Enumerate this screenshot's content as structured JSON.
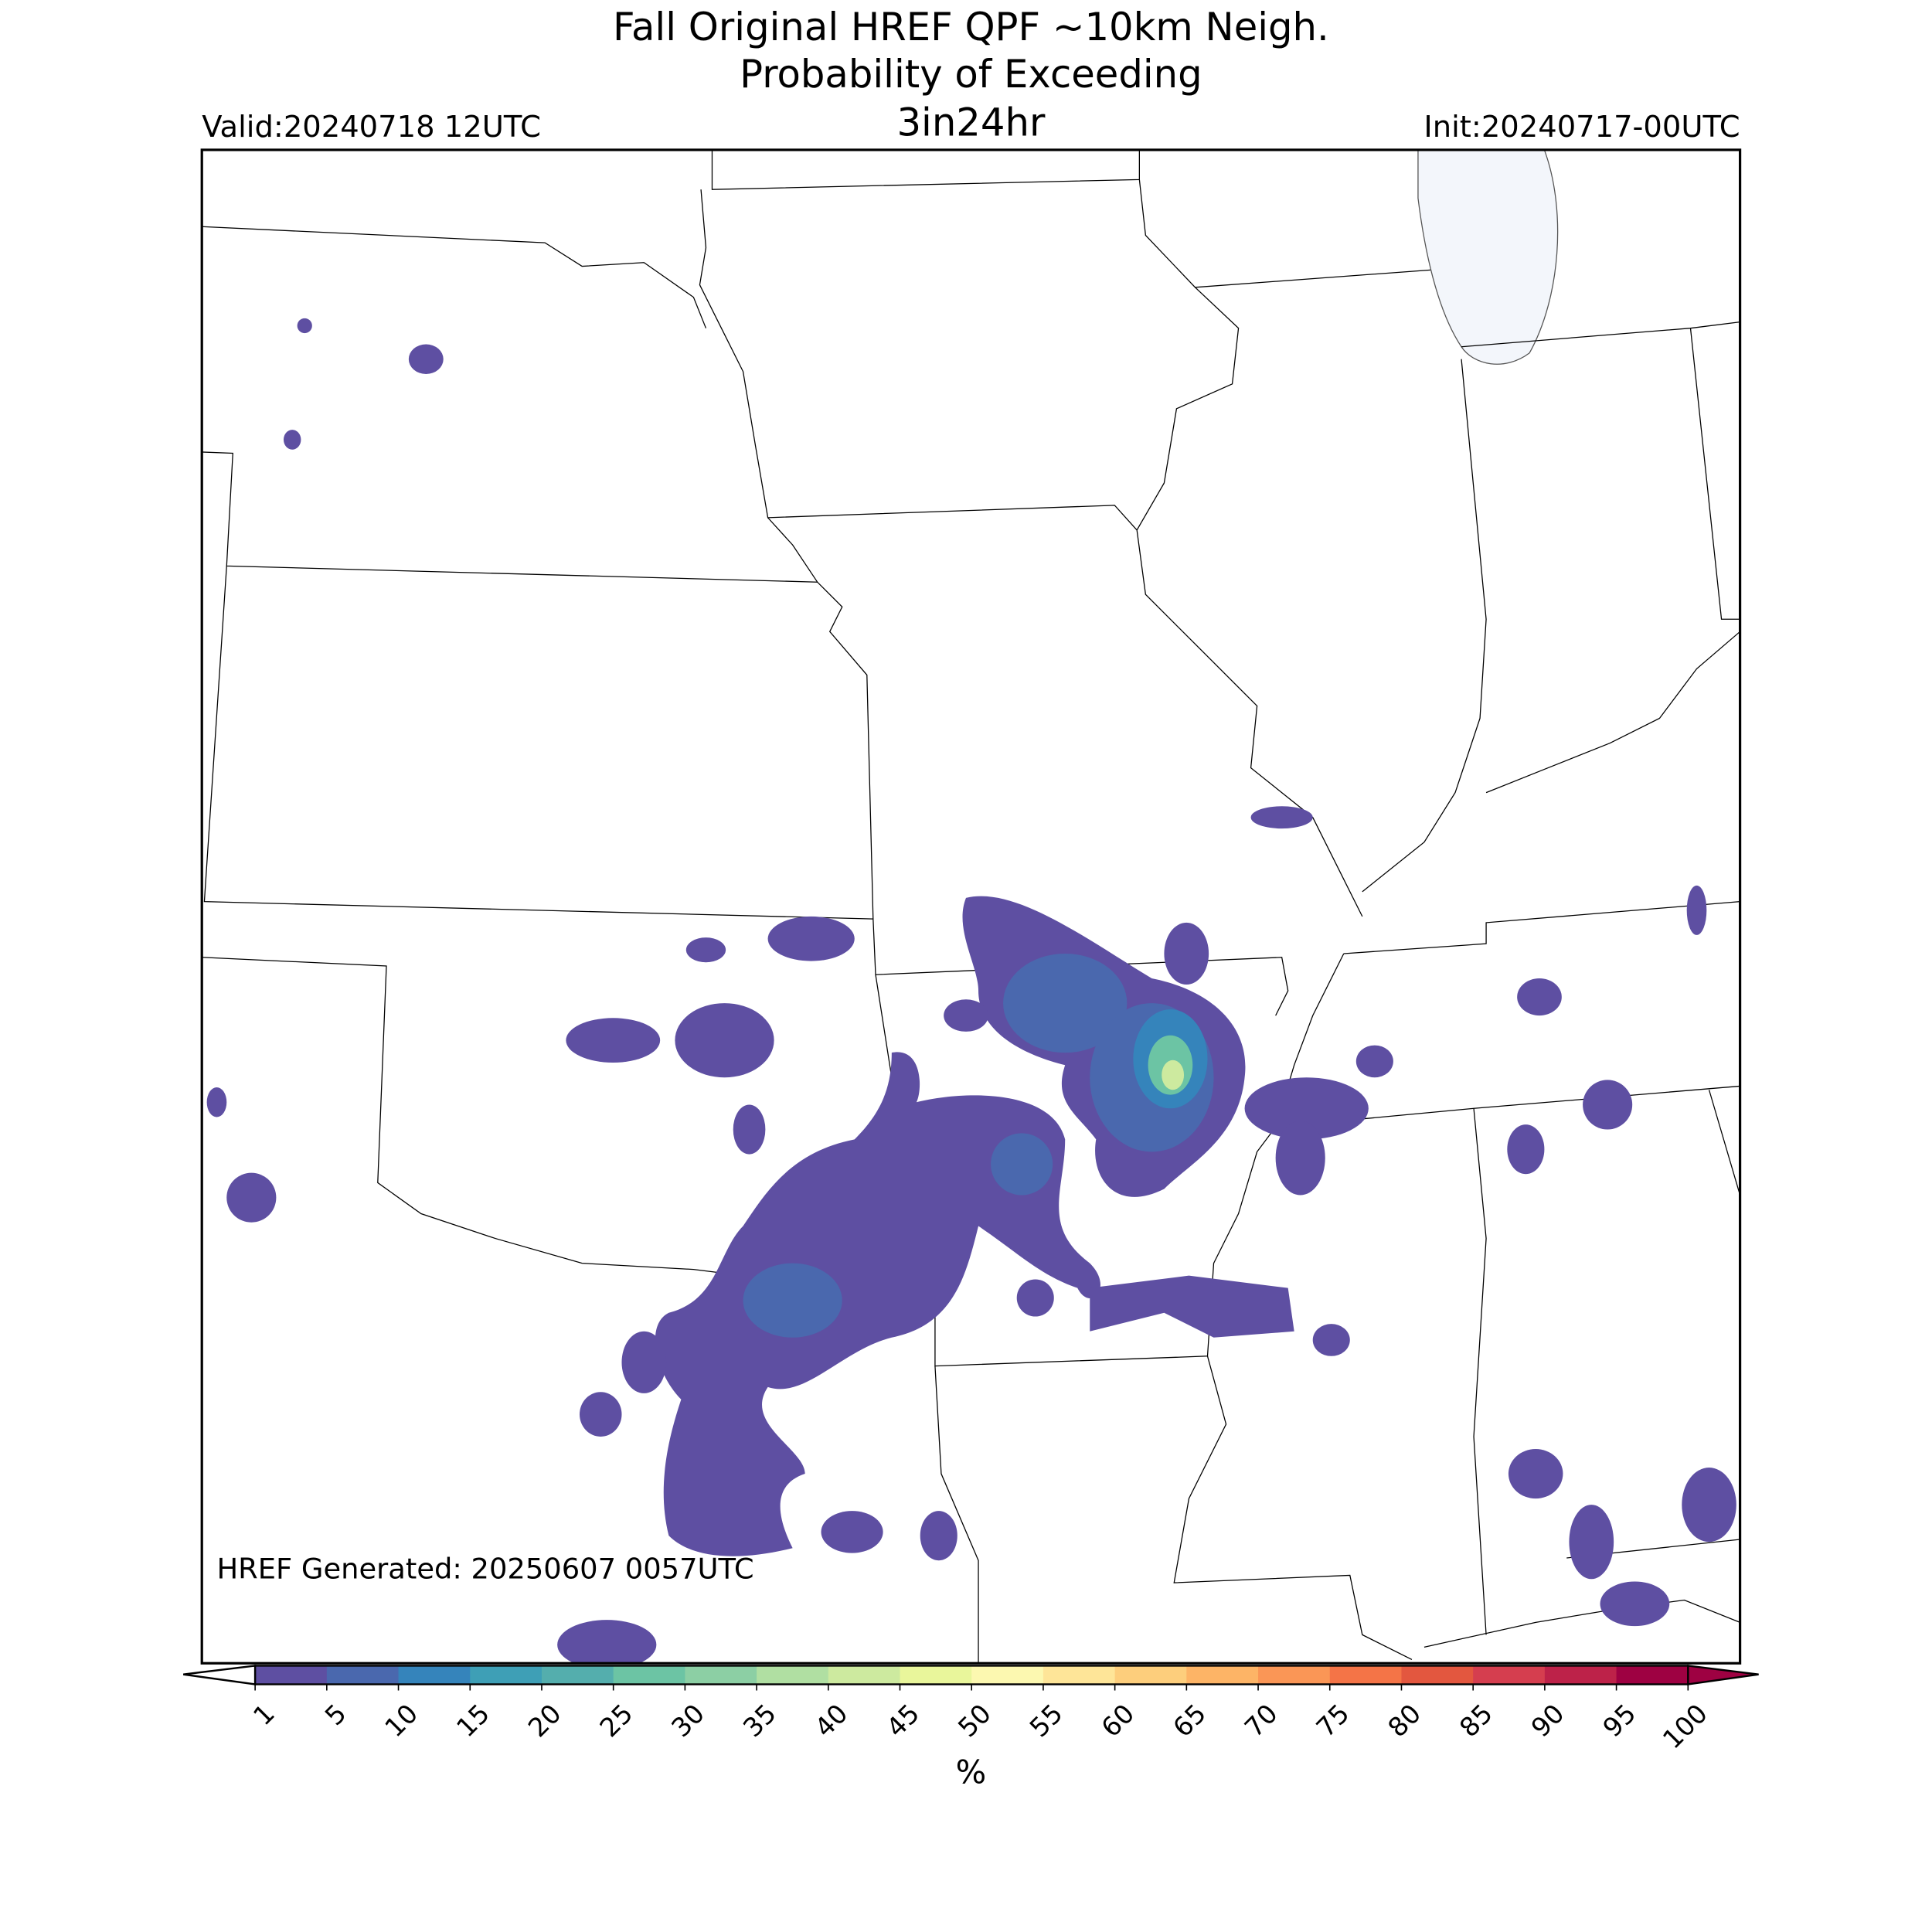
{
  "header": {
    "title_lines": [
      "Fall Original HREF QPF ~10km Neigh.",
      "Probability of Exceeding",
      "3in24hr"
    ],
    "valid": "Valid:20240718 12UTC",
    "init": "Init:20240717-00UTC"
  },
  "map": {
    "generated": "HREF Generated: 20250607 0057UTC"
  },
  "colorbar": {
    "label": "%",
    "ticks": [
      1,
      5,
      10,
      15,
      20,
      25,
      30,
      35,
      40,
      45,
      50,
      55,
      60,
      65,
      70,
      75,
      80,
      85,
      90,
      95,
      100
    ],
    "colors": [
      "#5e4fa2",
      "#4a68ae",
      "#3584bb",
      "#3e9fb6",
      "#54aead",
      "#6cc4a4",
      "#8ccfa4",
      "#b0dfa2",
      "#cdea9f",
      "#e9f69b",
      "#fcf8b0",
      "#fee598",
      "#fdce7c",
      "#fdb466",
      "#fa9656",
      "#f47447",
      "#e3573f",
      "#d53e4f",
      "#bd2249",
      "#9e0142"
    ]
  }
}
